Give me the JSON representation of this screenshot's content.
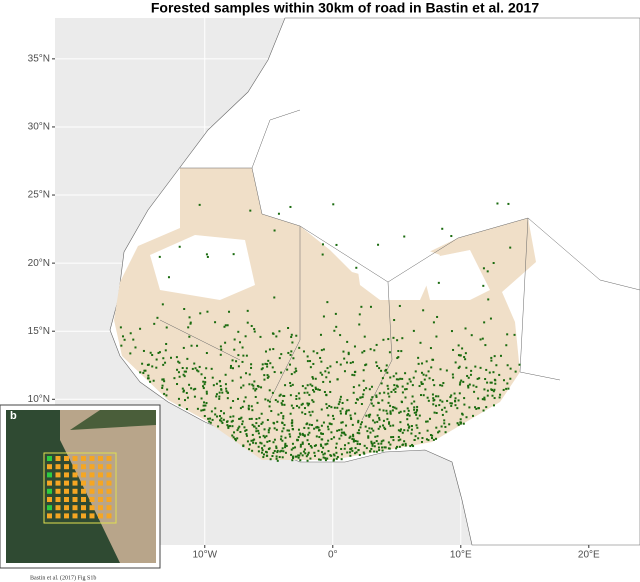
{
  "map": {
    "title": "Forested samples within 30km of road in Bastin et al. 2017",
    "xlim": [
      -21.7,
      24
    ],
    "ylim": [
      -0.7,
      38
    ],
    "xticks": [
      {
        "value": -10,
        "label": "10°W"
      },
      {
        "value": 0,
        "label": "0°"
      },
      {
        "value": 10,
        "label": "10°E"
      },
      {
        "value": 20,
        "label": "20°E"
      }
    ],
    "yticks": [
      {
        "value": 35,
        "label": "35°N"
      },
      {
        "value": 30,
        "label": "30°N"
      },
      {
        "value": 25,
        "label": "25°N"
      },
      {
        "value": 20,
        "label": "20°N"
      },
      {
        "value": 15,
        "label": "15°N"
      },
      {
        "value": 10,
        "label": "10°N"
      }
    ],
    "inset_label": "b",
    "caption": "Bastin et al. (2017) Fig S1b"
  }
}
